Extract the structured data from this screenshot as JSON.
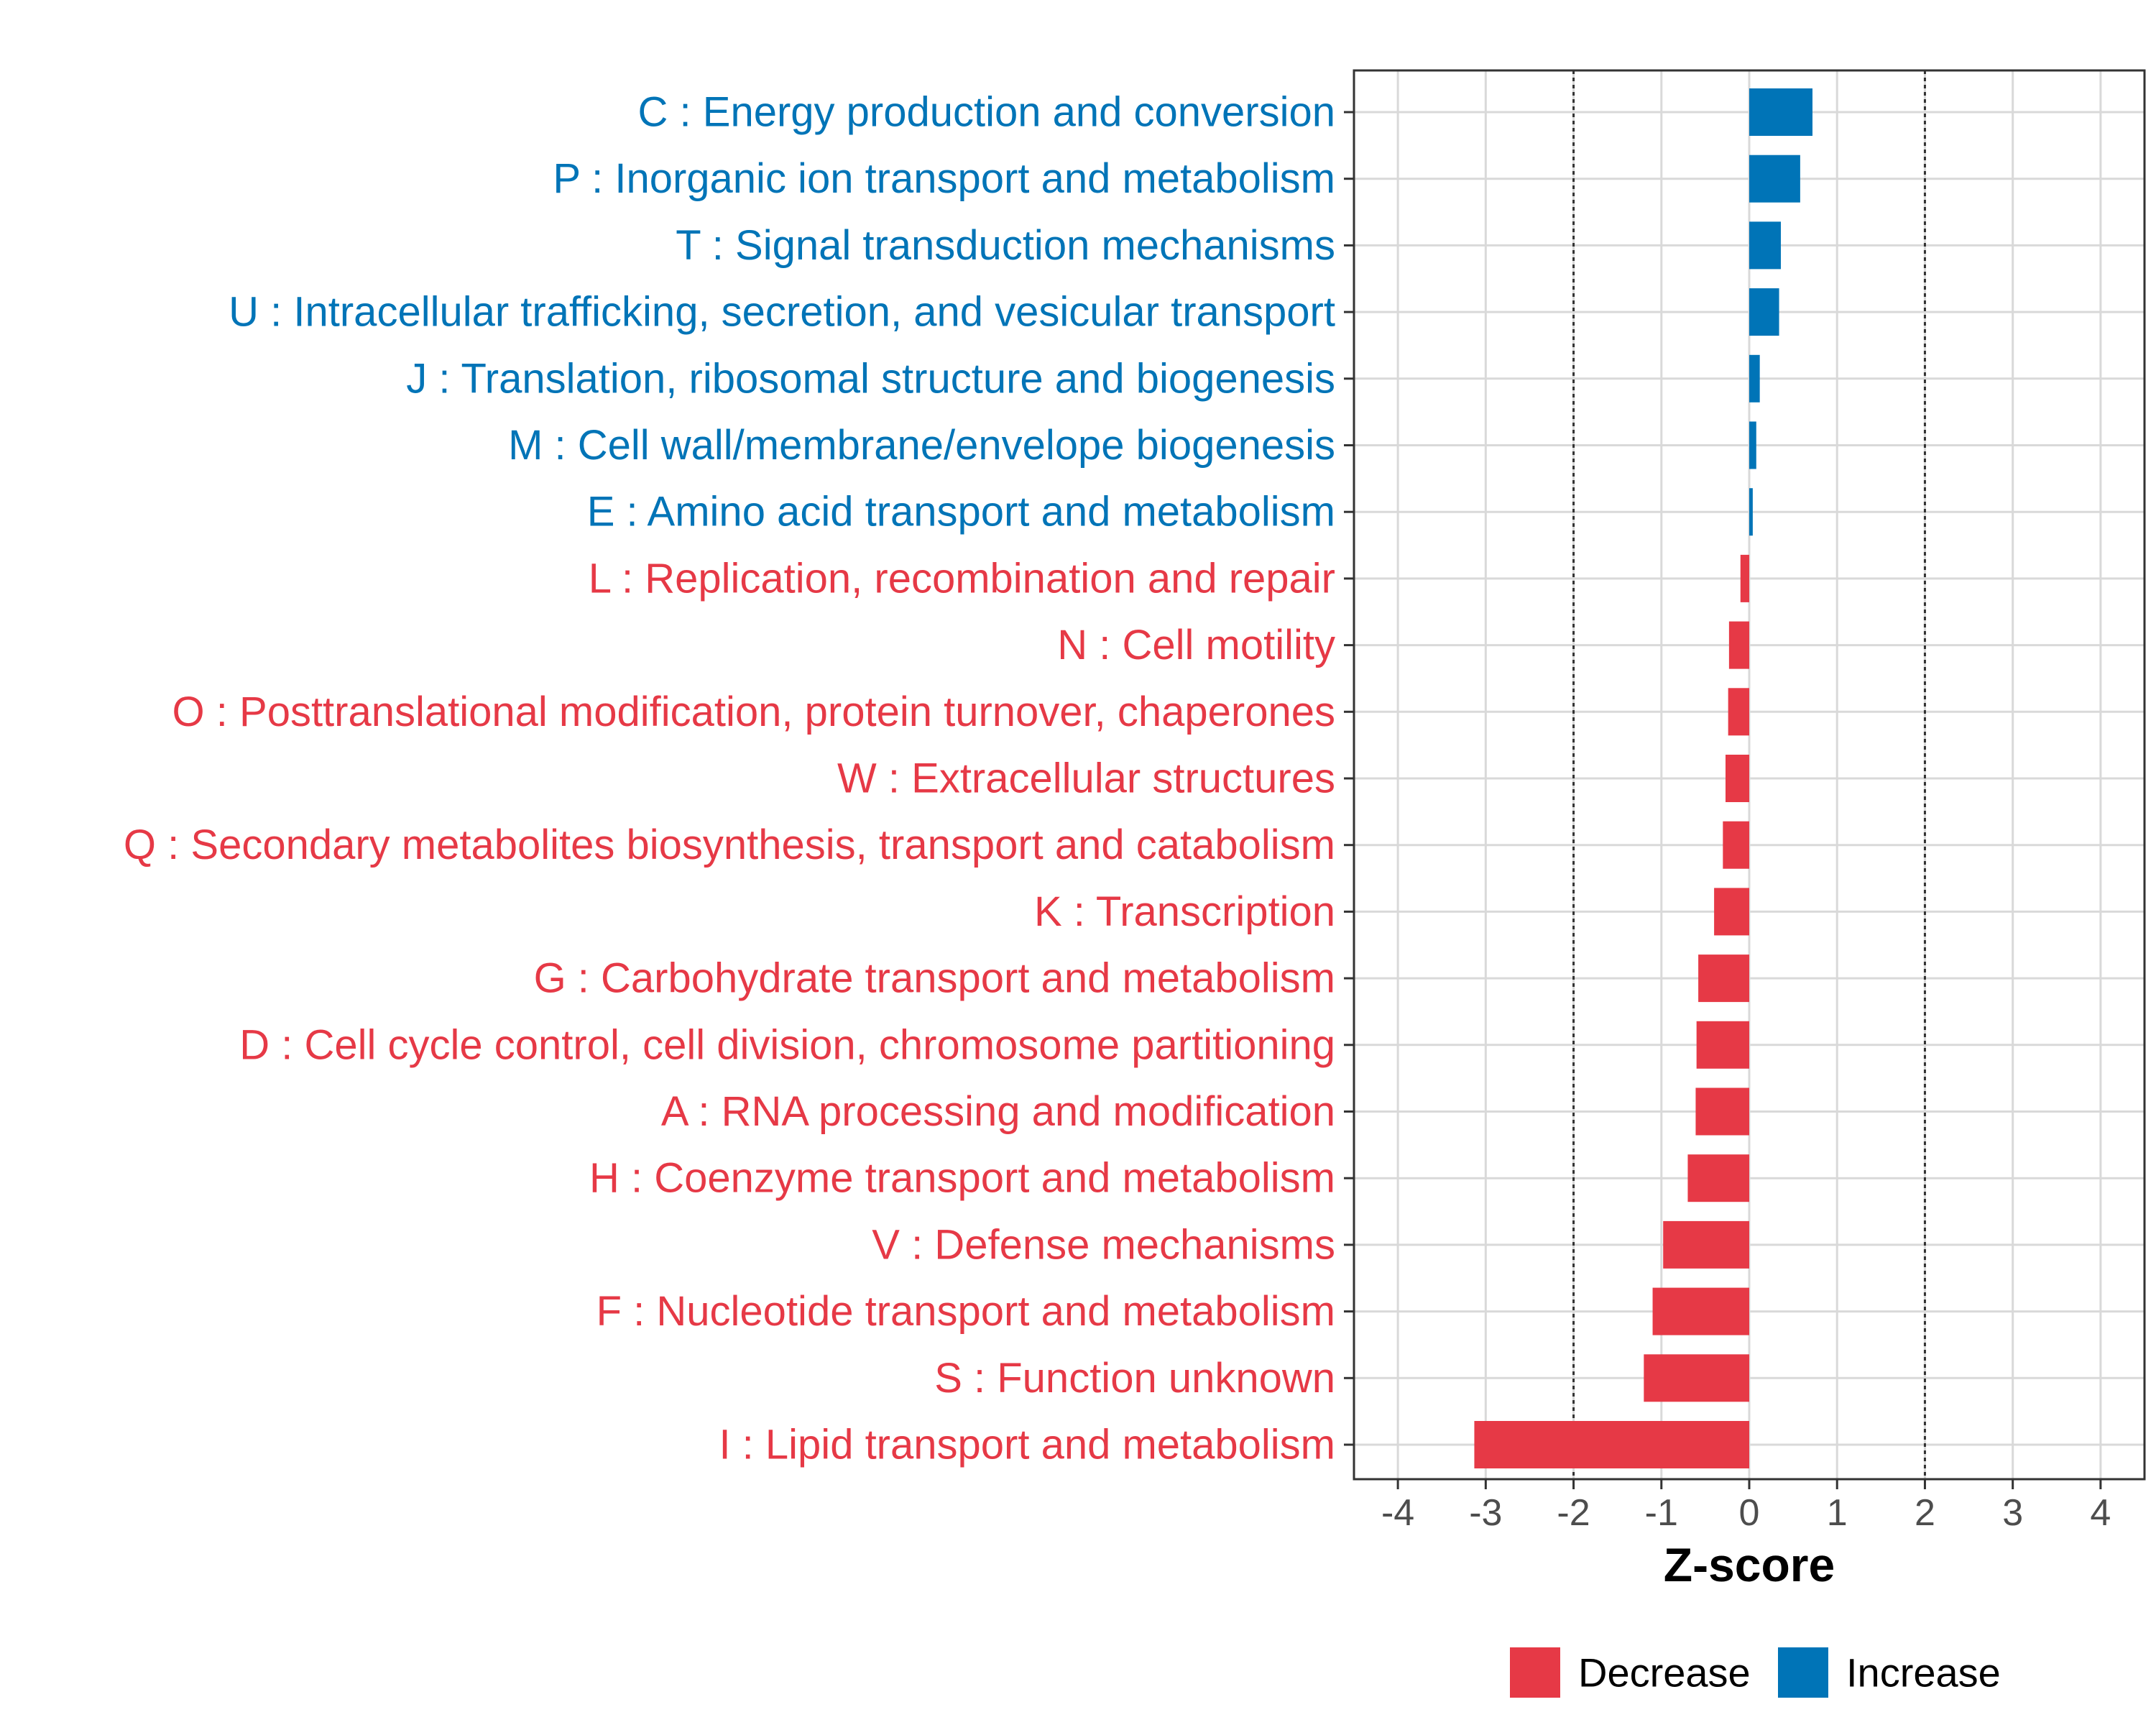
{
  "chart_data": {
    "type": "bar",
    "orientation": "horizontal",
    "xlabel": "Z-score",
    "xlim": [
      -4.5,
      4.5
    ],
    "xticks": [
      -4,
      -3,
      -2,
      -1,
      0,
      1,
      2,
      3,
      4
    ],
    "xtick_labels": [
      "-4",
      "-3",
      "-2",
      "-1",
      "0",
      "1",
      "2",
      "3",
      "4"
    ],
    "reference_lines": [
      -2,
      2
    ],
    "grid": true,
    "categories": [
      "C : Energy production and conversion",
      "P : Inorganic ion transport and metabolism",
      "T : Signal transduction mechanisms",
      "U : Intracellular trafficking, secretion, and vesicular transport",
      "J : Translation, ribosomal structure and biogenesis",
      "M : Cell wall/membrane/envelope biogenesis",
      "E : Amino acid transport and metabolism",
      "L : Replication, recombination and repair",
      "N : Cell motility",
      "O : Posttranslational modification, protein turnover, chaperones",
      "W : Extracellular structures",
      "Q : Secondary metabolites biosynthesis, transport and catabolism",
      "K : Transcription",
      "G : Carbohydrate transport and metabolism",
      "D : Cell cycle control, cell division, chromosome partitioning",
      "A : RNA processing and modification",
      "H : Coenzyme transport and metabolism",
      "V : Defense mechanisms",
      "F : Nucleotide transport and metabolism",
      "S : Function unknown",
      "I : Lipid transport and metabolism"
    ],
    "values": [
      0.72,
      0.58,
      0.36,
      0.34,
      0.12,
      0.08,
      0.04,
      -0.1,
      -0.23,
      -0.24,
      -0.27,
      -0.3,
      -0.4,
      -0.58,
      -0.6,
      -0.61,
      -0.7,
      -0.98,
      -1.1,
      -1.2,
      -3.13
    ],
    "groups": [
      "Increase",
      "Increase",
      "Increase",
      "Increase",
      "Increase",
      "Increase",
      "Increase",
      "Decrease",
      "Decrease",
      "Decrease",
      "Decrease",
      "Decrease",
      "Decrease",
      "Decrease",
      "Decrease",
      "Decrease",
      "Decrease",
      "Decrease",
      "Decrease",
      "Decrease",
      "Decrease"
    ],
    "legend": [
      {
        "label": "Decrease",
        "color": "#e63946"
      },
      {
        "label": "Increase",
        "color": "#0074b7"
      }
    ],
    "legend_position": "bottom"
  }
}
